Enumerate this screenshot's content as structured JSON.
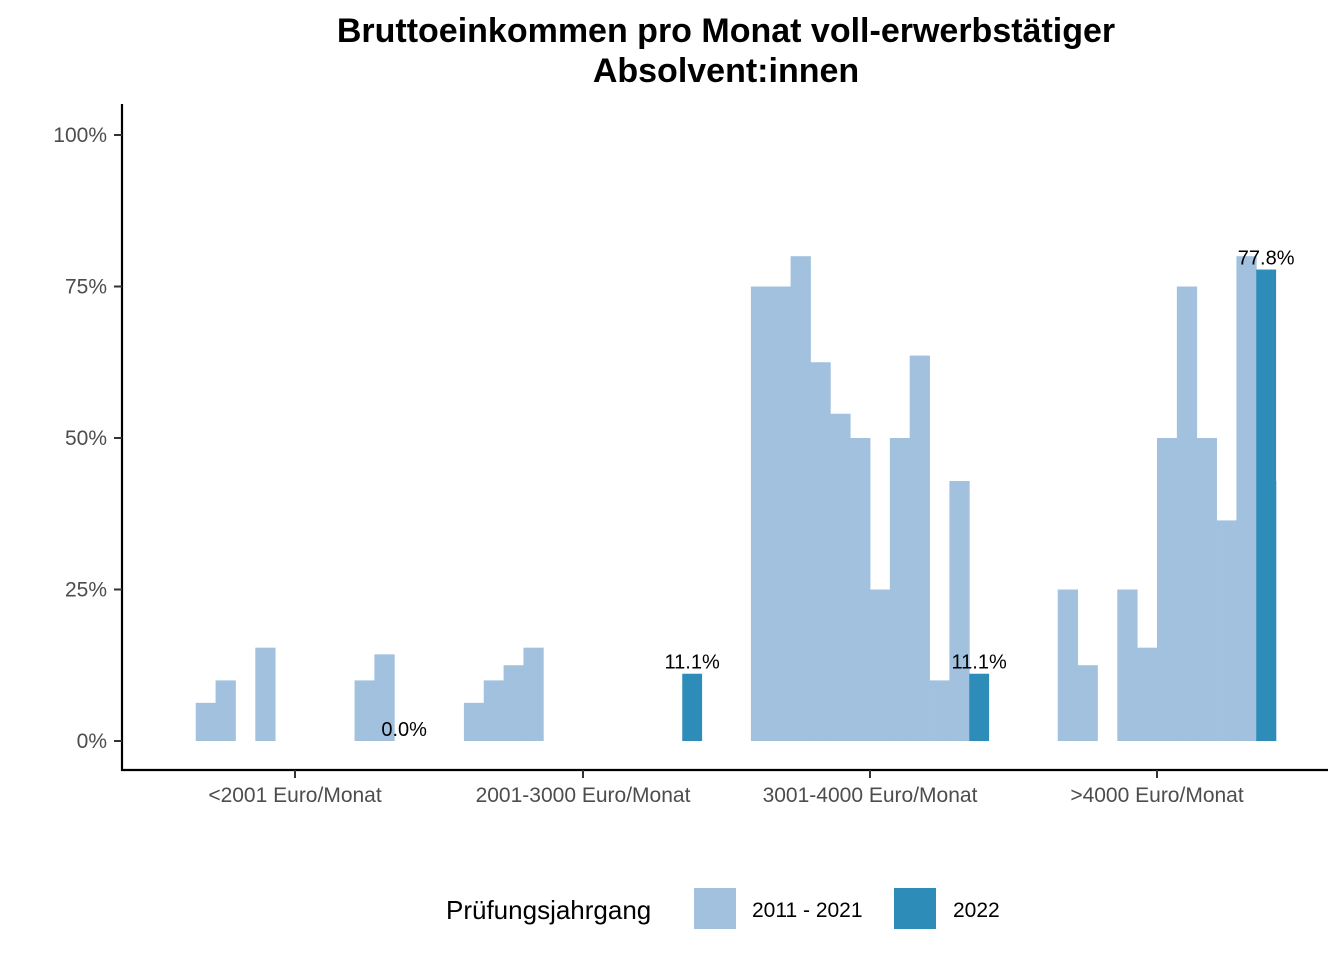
{
  "chart_data": {
    "type": "bar",
    "title_lines": [
      "Bruttoeinkommen pro Monat voll-erwerbstätiger",
      "Absolvent:innen"
    ],
    "xlabel": "",
    "ylabel": "",
    "ylim": [
      -5,
      105
    ],
    "yticks": [
      0,
      25,
      50,
      75,
      100
    ],
    "ytick_labels": [
      "0%",
      "25%",
      "50%",
      "75%",
      "100%"
    ],
    "categories": [
      "<2001 Euro/Monat",
      "2001-3000 Euro/Monat",
      "3001-4000 Euro/Monat",
      ">4000 Euro/Monat"
    ],
    "bars_per_category": 12,
    "series": [
      {
        "name": "2011 - 2021",
        "color": "#a1c1de",
        "values": [
          [
            0,
            6.3,
            10,
            0,
            15.4,
            0,
            0,
            0,
            0,
            10,
            14.3,
            0
          ],
          [
            6.3,
            10,
            12.5,
            15.4,
            0,
            0,
            0,
            0,
            0,
            0,
            0,
            0
          ],
          [
            75,
            75,
            80,
            62.5,
            54,
            50,
            25,
            50,
            63.6,
            10,
            42.9,
            0
          ],
          [
            0,
            25,
            12.5,
            0,
            25,
            15.4,
            50,
            75,
            50,
            36.4,
            80,
            42.9
          ]
        ]
      },
      {
        "name": "2022",
        "color": "#2e8cb8",
        "values": [
          0.0,
          11.1,
          11.1,
          77.8
        ],
        "labels": [
          "0.0%",
          "11.1%",
          "11.1%",
          "77.8%"
        ]
      }
    ],
    "legend": {
      "title": "Prüfungsjahrgang",
      "position": "bottom",
      "entries": [
        "2011 - 2021",
        "2022"
      ]
    },
    "grid": false
  }
}
